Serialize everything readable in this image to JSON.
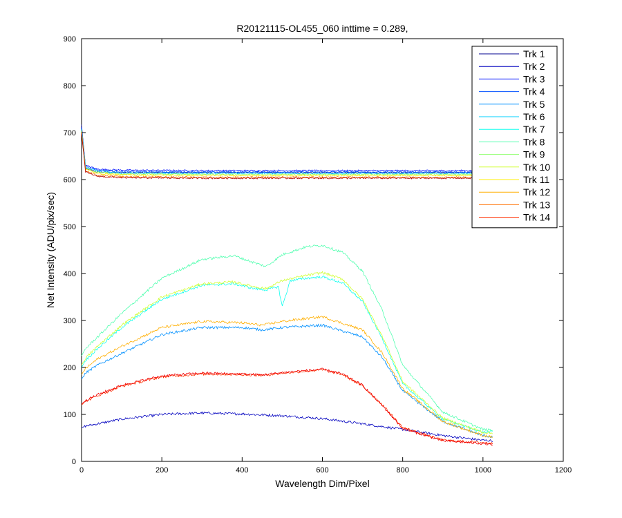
{
  "chart_data": {
    "type": "line",
    "title": "R20121115-OL455_060 inttime = 0.289,",
    "xlabel": "Wavelength Dim/Pixel",
    "ylabel": "Net Intensity (ADU/pix/sec)",
    "xlim": [
      0,
      1200
    ],
    "ylim": [
      0,
      900
    ],
    "xticks": [
      0,
      200,
      400,
      600,
      800,
      1000,
      1200
    ],
    "yticks": [
      0,
      100,
      200,
      300,
      400,
      500,
      600,
      700,
      800,
      900
    ],
    "grid": false,
    "legend_position": "top-right",
    "series": [
      {
        "name": "Trk 1",
        "color": "#00008f",
        "x": [
          0,
          10,
          40,
          100,
          300,
          600,
          800,
          1000,
          1024
        ],
        "y": [
          717,
          623,
          616,
          615,
          615,
          615,
          615,
          615,
          615
        ]
      },
      {
        "name": "Trk 2",
        "color": "#0000bf",
        "x": [
          0,
          10,
          40,
          100,
          200,
          300,
          400,
          500,
          600,
          700,
          800,
          900,
          1000,
          1024
        ],
        "y": [
          72,
          75,
          80,
          90,
          100,
          103,
          101,
          97,
          91,
          80,
          68,
          55,
          45,
          44
        ]
      },
      {
        "name": "Trk 3",
        "color": "#0010ff",
        "x": [
          0,
          10,
          40,
          100,
          300,
          600,
          800,
          1000,
          1024
        ],
        "y": [
          712,
          630,
          622,
          620,
          619,
          619,
          619,
          619,
          619
        ]
      },
      {
        "name": "Trk 4",
        "color": "#0050ff",
        "x": [
          0,
          10,
          40,
          100,
          300,
          600,
          800,
          1000,
          1024
        ],
        "y": [
          710,
          628,
          620,
          617,
          616,
          616,
          616,
          616,
          616
        ]
      },
      {
        "name": "Trk 5",
        "color": "#0090ff",
        "x": [
          0,
          10,
          40,
          100,
          200,
          300,
          400,
          450,
          500,
          600,
          700,
          750,
          800,
          900,
          1000,
          1024
        ],
        "y": [
          175,
          188,
          205,
          230,
          270,
          285,
          285,
          280,
          285,
          290,
          265,
          220,
          150,
          85,
          55,
          52
        ]
      },
      {
        "name": "Trk 6",
        "color": "#00d0ff",
        "x": [
          0,
          10,
          40,
          100,
          300,
          600,
          800,
          1000,
          1024
        ],
        "y": [
          708,
          626,
          618,
          614,
          613,
          613,
          613,
          613,
          613
        ]
      },
      {
        "name": "Trk 7",
        "color": "#10ffef",
        "x": [
          0,
          10,
          40,
          100,
          200,
          300,
          380,
          430,
          460,
          490,
          500,
          520,
          560,
          600,
          650,
          700,
          750,
          800,
          900,
          1000,
          1024
        ],
        "y": [
          200,
          215,
          240,
          285,
          345,
          375,
          378,
          368,
          365,
          372,
          330,
          385,
          390,
          393,
          380,
          340,
          260,
          165,
          90,
          62,
          63
        ]
      },
      {
        "name": "Trk 8",
        "color": "#50ffaf",
        "x": [
          0,
          10,
          40,
          100,
          200,
          300,
          380,
          430,
          460,
          500,
          560,
          600,
          650,
          700,
          750,
          800,
          900,
          1000,
          1024
        ],
        "y": [
          225,
          240,
          265,
          315,
          390,
          430,
          438,
          423,
          415,
          440,
          457,
          460,
          445,
          405,
          320,
          205,
          105,
          68,
          66
        ]
      },
      {
        "name": "Trk 9",
        "color": "#90ff6f",
        "x": [
          0,
          10,
          40,
          100,
          300,
          600,
          800,
          1000,
          1024
        ],
        "y": [
          705,
          624,
          616,
          612,
          611,
          611,
          611,
          611,
          611
        ]
      },
      {
        "name": "Trk 10",
        "color": "#d0ff2f",
        "x": [
          0,
          10,
          40,
          100,
          200,
          300,
          380,
          430,
          460,
          500,
          560,
          600,
          650,
          700,
          750,
          800,
          900,
          1000,
          1024
        ],
        "y": [
          205,
          220,
          245,
          290,
          350,
          378,
          382,
          372,
          368,
          385,
          396,
          402,
          388,
          345,
          265,
          170,
          92,
          62,
          60
        ]
      },
      {
        "name": "Trk 11",
        "color": "#ffef00",
        "x": [
          0,
          10,
          40,
          100,
          300,
          600,
          800,
          1000,
          1024
        ],
        "y": [
          702,
          622,
          613,
          610,
          609,
          609,
          609,
          609,
          609
        ]
      },
      {
        "name": "Trk 12",
        "color": "#ffaf00",
        "x": [
          0,
          10,
          40,
          100,
          200,
          300,
          400,
          450,
          500,
          600,
          700,
          750,
          800,
          900,
          1000,
          1024
        ],
        "y": [
          185,
          198,
          218,
          245,
          285,
          298,
          295,
          290,
          298,
          308,
          280,
          230,
          155,
          85,
          55,
          52
        ]
      },
      {
        "name": "Trk 13",
        "color": "#ff6f00",
        "x": [
          0,
          10,
          40,
          100,
          300,
          600,
          800,
          1000,
          1024
        ],
        "y": [
          700,
          618,
          609,
          606,
          605,
          605,
          605,
          605,
          605
        ]
      },
      {
        "name": "Trk 14",
        "color": "#ff2f00",
        "x": [
          0,
          10,
          40,
          100,
          200,
          300,
          400,
          450,
          500,
          600,
          650,
          700,
          750,
          800,
          900,
          1000,
          1024
        ],
        "y": [
          120,
          128,
          140,
          160,
          180,
          186,
          185,
          183,
          188,
          195,
          185,
          160,
          120,
          72,
          45,
          40,
          38
        ]
      },
      {
        "name": "",
        "color": "#ef0000",
        "x": [
          0,
          10,
          40,
          100,
          200,
          300,
          400,
          450,
          500,
          600,
          650,
          700,
          750,
          800,
          900,
          1000,
          1024
        ],
        "y": [
          122,
          130,
          142,
          162,
          182,
          188,
          186,
          184,
          189,
          196,
          186,
          162,
          118,
          70,
          44,
          38,
          36
        ]
      },
      {
        "name": "",
        "color": "#af0000",
        "x": [
          0,
          10,
          40,
          100,
          300,
          600,
          800,
          1000,
          1024
        ],
        "y": [
          698,
          616,
          607,
          604,
          603,
          603,
          603,
          603,
          603
        ]
      }
    ]
  }
}
